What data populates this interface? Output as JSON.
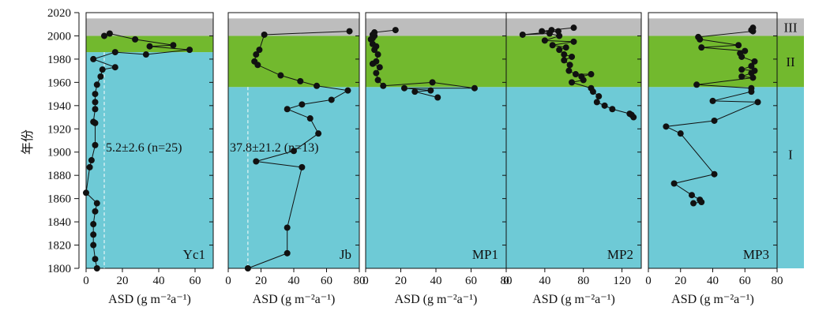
{
  "chart_data": {
    "type": "scatter",
    "ylabel": "年份",
    "y_ticks": [
      1800,
      1820,
      1840,
      1860,
      1880,
      1900,
      1920,
      1940,
      1960,
      1980,
      2000,
      2020
    ],
    "ylim": [
      1800,
      2020
    ],
    "zones": [
      {
        "label": "I",
        "from": 1800,
        "to": 1956,
        "color": "#6ecad6"
      },
      {
        "label": "II",
        "from": 1956,
        "to": 2000,
        "color": "#72b92e"
      },
      {
        "label": "III",
        "from": 2000,
        "to": 2015,
        "color": "#bdbdbd"
      }
    ],
    "panels": [
      {
        "name": "Yc1",
        "xlabel": "ASD (g m⁻²a⁻¹)",
        "xlim": [
          0,
          70
        ],
        "x_ticks": [
          0,
          20,
          40,
          60
        ],
        "zone_I_top": 1986,
        "annotation": "5.2±2.6 (n=25)",
        "mean_line_x": 10,
        "points": [
          [
            10,
            2000
          ],
          [
            13,
            2002
          ],
          [
            27,
            1997
          ],
          [
            48,
            1992
          ],
          [
            35,
            1991
          ],
          [
            57,
            1988
          ],
          [
            33,
            1984
          ],
          [
            16,
            1986
          ],
          [
            4,
            1980
          ],
          [
            16,
            1973
          ],
          [
            9,
            1971
          ],
          [
            8,
            1965
          ],
          [
            6,
            1958
          ],
          [
            5,
            1950
          ],
          [
            5,
            1943
          ],
          [
            5,
            1937
          ],
          [
            4,
            1926
          ],
          [
            5,
            1925
          ],
          [
            5,
            1906
          ],
          [
            3,
            1893
          ],
          [
            2,
            1887
          ],
          [
            0,
            1865
          ],
          [
            6,
            1856
          ],
          [
            5,
            1849
          ],
          [
            4,
            1838
          ],
          [
            4,
            1829
          ],
          [
            4,
            1820
          ],
          [
            5,
            1808
          ],
          [
            6,
            1800
          ]
        ]
      },
      {
        "name": "Jb",
        "xlabel": "ASD (g m⁻²a⁻¹)",
        "xlim": [
          0,
          80
        ],
        "x_ticks": [
          0,
          20,
          40,
          60,
          80
        ],
        "zone_I_top": 1956,
        "annotation": "37.8±21.2 (n=13)",
        "mean_line_x": 12,
        "points": [
          [
            74,
            2004
          ],
          [
            22,
            2001
          ],
          [
            19,
            1988
          ],
          [
            17,
            1984
          ],
          [
            16,
            1978
          ],
          [
            18,
            1975
          ],
          [
            32,
            1966
          ],
          [
            44,
            1961
          ],
          [
            54,
            1957
          ],
          [
            73,
            1953
          ],
          [
            63,
            1945
          ],
          [
            45,
            1941
          ],
          [
            36,
            1937
          ],
          [
            50,
            1929
          ],
          [
            55,
            1916
          ],
          [
            40,
            1901
          ],
          [
            17,
            1892
          ],
          [
            45,
            1887
          ],
          [
            36,
            1835
          ],
          [
            36,
            1813
          ],
          [
            12,
            1800
          ]
        ]
      },
      {
        "name": "MP1",
        "xlabel": "ASD (g m⁻²a⁻¹)",
        "xlim": [
          0,
          80
        ],
        "x_ticks": [
          0,
          20,
          40,
          60,
          80
        ],
        "points": [
          [
            17,
            2005
          ],
          [
            5,
            2003
          ],
          [
            4,
            2001
          ],
          [
            5,
            2000
          ],
          [
            4,
            1998
          ],
          [
            3,
            1997
          ],
          [
            4,
            1993
          ],
          [
            6,
            1991
          ],
          [
            5,
            1988
          ],
          [
            7,
            1984
          ],
          [
            6,
            1978
          ],
          [
            4,
            1976
          ],
          [
            8,
            1973
          ],
          [
            6,
            1968
          ],
          [
            7,
            1962
          ],
          [
            10,
            1957
          ],
          [
            38,
            1960
          ],
          [
            62,
            1955
          ],
          [
            22,
            1955
          ],
          [
            37,
            1953
          ],
          [
            28,
            1952
          ],
          [
            41,
            1947
          ]
        ]
      },
      {
        "name": "MP2",
        "xlabel": "ASD (g m⁻²a⁻¹)",
        "xlim": [
          0,
          140
        ],
        "x_ticks": [
          0,
          40,
          80,
          120
        ],
        "points": [
          [
            70,
            2007
          ],
          [
            47,
            2005
          ],
          [
            37,
            2004
          ],
          [
            54,
            2004
          ],
          [
            17,
            2001
          ],
          [
            45,
            2002
          ],
          [
            55,
            2000
          ],
          [
            40,
            1996
          ],
          [
            70,
            1995
          ],
          [
            48,
            1992
          ],
          [
            62,
            1990
          ],
          [
            55,
            1988
          ],
          [
            60,
            1984
          ],
          [
            68,
            1982
          ],
          [
            60,
            1979
          ],
          [
            66,
            1975
          ],
          [
            65,
            1970
          ],
          [
            72,
            1967
          ],
          [
            88,
            1967
          ],
          [
            78,
            1965
          ],
          [
            80,
            1962
          ],
          [
            68,
            1960
          ],
          [
            88,
            1955
          ],
          [
            90,
            1952
          ],
          [
            96,
            1948
          ],
          [
            94,
            1943
          ],
          [
            102,
            1940
          ],
          [
            110,
            1937
          ],
          [
            128,
            1933
          ],
          [
            130,
            1932
          ],
          [
            132,
            1930
          ]
        ]
      },
      {
        "name": "MP3",
        "xlabel": "ASD (g m⁻²a⁻¹)",
        "xlim": [
          0,
          80
        ],
        "x_ticks": [
          0,
          20,
          40,
          60,
          80
        ],
        "points": [
          [
            65,
            2007
          ],
          [
            64,
            2005
          ],
          [
            65,
            2004
          ],
          [
            31,
            1999
          ],
          [
            32,
            1997
          ],
          [
            56,
            1992
          ],
          [
            33,
            1990
          ],
          [
            60,
            1987
          ],
          [
            57,
            1985
          ],
          [
            58,
            1982
          ],
          [
            66,
            1978
          ],
          [
            64,
            1974
          ],
          [
            58,
            1971
          ],
          [
            66,
            1970
          ],
          [
            64,
            1968
          ],
          [
            58,
            1965
          ],
          [
            65,
            1964
          ],
          [
            30,
            1958
          ],
          [
            64,
            1955
          ],
          [
            64,
            1952
          ],
          [
            40,
            1944
          ],
          [
            68,
            1943
          ],
          [
            41,
            1927
          ],
          [
            11,
            1922
          ],
          [
            20,
            1916
          ],
          [
            41,
            1881
          ],
          [
            16,
            1873
          ],
          [
            27,
            1863
          ],
          [
            32,
            1859
          ],
          [
            33,
            1857
          ],
          [
            28,
            1856
          ]
        ]
      }
    ]
  }
}
